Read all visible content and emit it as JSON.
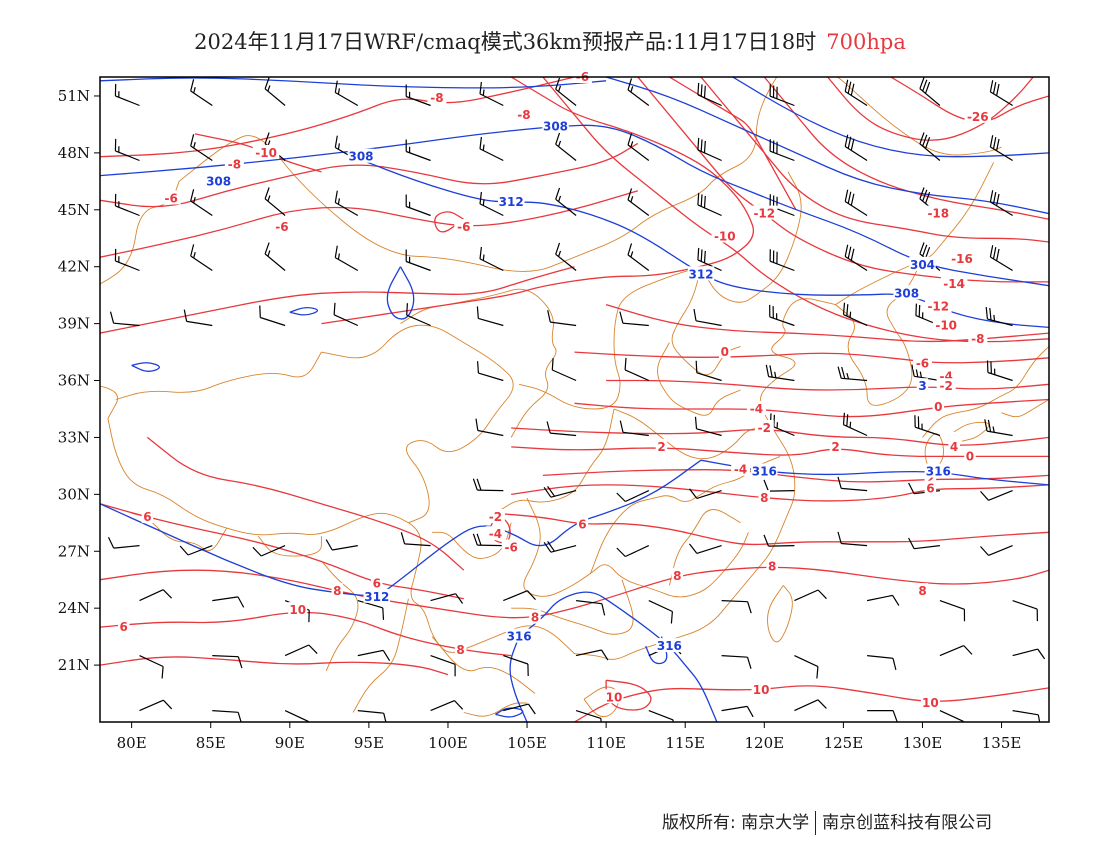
{
  "header": {
    "title": "2024年11月17日WRF/cmaq模式36km预报产品:11月17日18时",
    "level": "700hpa"
  },
  "axes": {
    "lon_labels": [
      "80E",
      "85E",
      "90E",
      "95E",
      "100E",
      "105E",
      "110E",
      "115E",
      "120E",
      "125E",
      "130E",
      "135E"
    ],
    "lon_values": [
      80,
      85,
      90,
      95,
      100,
      105,
      110,
      115,
      120,
      125,
      130,
      135
    ],
    "lat_labels": [
      "51N",
      "48N",
      "45N",
      "42N",
      "39N",
      "36N",
      "33N",
      "30N",
      "27N",
      "24N",
      "21N"
    ],
    "lat_values": [
      51,
      48,
      45,
      42,
      39,
      36,
      33,
      30,
      27,
      24,
      21
    ],
    "lon_range": [
      78,
      138
    ],
    "lat_range": [
      18,
      52
    ]
  },
  "colors": {
    "temperature": "#e8383d",
    "height": "#1d3fd8",
    "boundary": "#d9842c",
    "wind": "#000000"
  },
  "temperature_labels": [
    {
      "text": "-8",
      "lon": 99.3,
      "lat": 50.9
    },
    {
      "text": "-8",
      "lon": 104.8,
      "lat": 50.0
    },
    {
      "text": "-6",
      "lon": 108.5,
      "lat": 52.0
    },
    {
      "text": "-10",
      "lon": 88.5,
      "lat": 48.0
    },
    {
      "text": "-8",
      "lon": 86.5,
      "lat": 47.4
    },
    {
      "text": "-6",
      "lon": 82.5,
      "lat": 45.6
    },
    {
      "text": "-6",
      "lon": 89.5,
      "lat": 44.1
    },
    {
      "text": "-6",
      "lon": 101.0,
      "lat": 44.1
    },
    {
      "text": "-12",
      "lon": 120.0,
      "lat": 44.8
    },
    {
      "text": "-10",
      "lon": 117.5,
      "lat": 43.6
    },
    {
      "text": "-26",
      "lon": 133.5,
      "lat": 49.9
    },
    {
      "text": "-18",
      "lon": 131.0,
      "lat": 44.8
    },
    {
      "text": "-16",
      "lon": 132.5,
      "lat": 42.4
    },
    {
      "text": "-14",
      "lon": 132.0,
      "lat": 41.1
    },
    {
      "text": "-12",
      "lon": 131.0,
      "lat": 39.9
    },
    {
      "text": "-10",
      "lon": 131.5,
      "lat": 38.9
    },
    {
      "text": "-8",
      "lon": 133.5,
      "lat": 38.2
    },
    {
      "text": "-6",
      "lon": 130.0,
      "lat": 36.9
    },
    {
      "text": "-4",
      "lon": 131.5,
      "lat": 36.2
    },
    {
      "text": "-2",
      "lon": 131.5,
      "lat": 35.7
    },
    {
      "text": "0",
      "lon": 131.0,
      "lat": 34.6
    },
    {
      "text": "2",
      "lon": 124.5,
      "lat": 32.5
    },
    {
      "text": "4",
      "lon": 132.0,
      "lat": 32.5
    },
    {
      "text": "0",
      "lon": 133.0,
      "lat": 32.0
    },
    {
      "text": "-2",
      "lon": 120.0,
      "lat": 33.5
    },
    {
      "text": "-4",
      "lon": 119.5,
      "lat": 34.5
    },
    {
      "text": "0",
      "lon": 117.5,
      "lat": 37.5
    },
    {
      "text": "2",
      "lon": 113.5,
      "lat": 32.5
    },
    {
      "text": "-4",
      "lon": 118.5,
      "lat": 31.3
    },
    {
      "text": "2",
      "lon": 130.5,
      "lat": 30.8
    },
    {
      "text": "6",
      "lon": 130.5,
      "lat": 30.3
    },
    {
      "text": "8",
      "lon": 120.0,
      "lat": 29.8
    },
    {
      "text": "6",
      "lon": 108.5,
      "lat": 28.4
    },
    {
      "text": "6",
      "lon": 81.0,
      "lat": 28.8
    },
    {
      "text": "-2",
      "lon": 103.0,
      "lat": 28.8
    },
    {
      "text": "-4",
      "lon": 103.0,
      "lat": 27.9
    },
    {
      "text": "-6",
      "lon": 104.0,
      "lat": 27.2
    },
    {
      "text": "6",
      "lon": 95.5,
      "lat": 25.3
    },
    {
      "text": "8",
      "lon": 93.0,
      "lat": 24.9
    },
    {
      "text": "10",
      "lon": 90.5,
      "lat": 23.9
    },
    {
      "text": "8",
      "lon": 114.5,
      "lat": 25.7
    },
    {
      "text": "8",
      "lon": 120.5,
      "lat": 26.2
    },
    {
      "text": "8",
      "lon": 130.0,
      "lat": 24.9
    },
    {
      "text": "8",
      "lon": 105.5,
      "lat": 23.5
    },
    {
      "text": "8",
      "lon": 100.8,
      "lat": 21.8
    },
    {
      "text": "6",
      "lon": 79.5,
      "lat": 23.0
    },
    {
      "text": "10",
      "lon": 110.5,
      "lat": 19.3
    },
    {
      "text": "10",
      "lon": 119.8,
      "lat": 19.7
    },
    {
      "text": "10",
      "lon": 130.5,
      "lat": 19.0
    }
  ],
  "height_labels": [
    {
      "text": "308",
      "lon": 106.8,
      "lat": 49.4
    },
    {
      "text": "308",
      "lon": 94.5,
      "lat": 47.8
    },
    {
      "text": "308",
      "lon": 85.5,
      "lat": 46.5
    },
    {
      "text": "312",
      "lon": 104.0,
      "lat": 45.4
    },
    {
      "text": "312",
      "lon": 116.0,
      "lat": 41.6
    },
    {
      "text": "304",
      "lon": 130.0,
      "lat": 42.1
    },
    {
      "text": "308",
      "lon": 129.0,
      "lat": 40.6
    },
    {
      "text": "3",
      "lon": 130.0,
      "lat": 35.7
    },
    {
      "text": "316",
      "lon": 120.0,
      "lat": 31.2
    },
    {
      "text": "316",
      "lon": 131.0,
      "lat": 31.2
    },
    {
      "text": "312",
      "lon": 95.5,
      "lat": 24.6
    },
    {
      "text": "316",
      "lon": 104.5,
      "lat": 22.5
    },
    {
      "text": "316",
      "lon": 114.0,
      "lat": 22.0
    }
  ],
  "footer": {
    "copyright": "版权所有: 南京大学",
    "company": "南京创蓝科技有限公司"
  }
}
